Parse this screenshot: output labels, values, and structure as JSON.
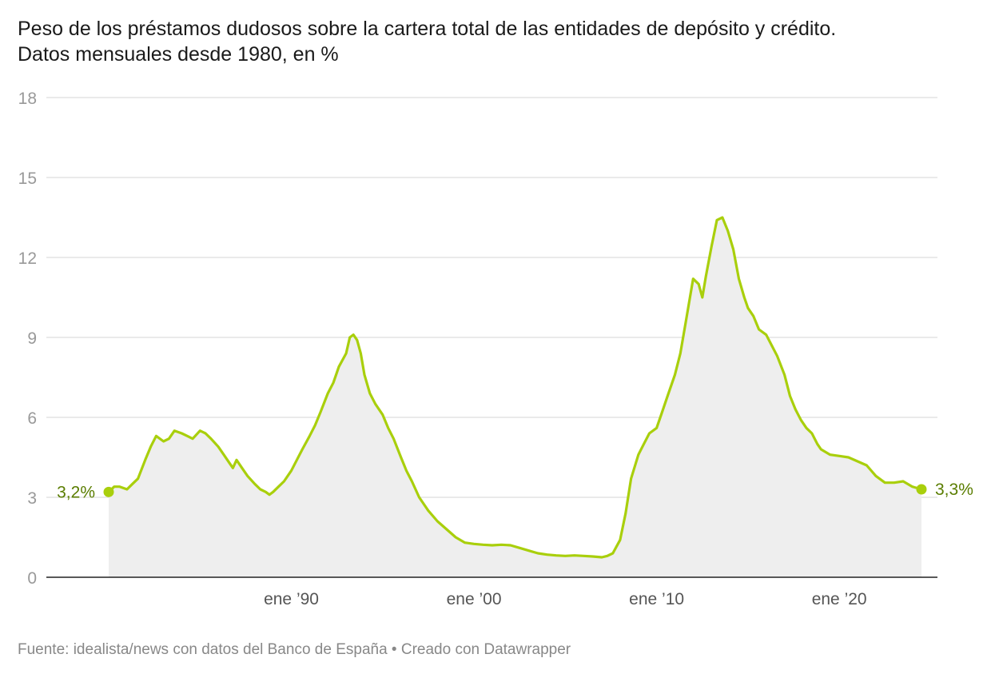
{
  "header": {
    "title": "Peso de los préstamos dudosos sobre la cartera total de las entidades de depósito y crédito.",
    "subtitle": "Datos mensuales desde 1980, en %"
  },
  "footer": {
    "source": "Fuente: idealista/news con datos del Banco de España • Creado con Datawrapper"
  },
  "chart_data": {
    "type": "area",
    "title": "Peso de los préstamos dudosos sobre la cartera total de las entidades de depósito y crédito.",
    "subtitle": "Datos mensuales desde 1980, en %",
    "xlabel": "",
    "ylabel": "",
    "ylim": [
      0,
      18
    ],
    "xlim": [
      1980.0,
      2024.5
    ],
    "yticks": [
      0,
      3,
      6,
      9,
      12,
      15,
      18
    ],
    "xticks": [
      {
        "value": 1990,
        "label": "ene ’90"
      },
      {
        "value": 2000,
        "label": "ene ’00"
      },
      {
        "value": 2010,
        "label": "ene ’10"
      },
      {
        "value": 2020,
        "label": "ene ’20"
      }
    ],
    "grid": true,
    "colors": {
      "line": "#a9cf0c",
      "area": "#eeeeee",
      "label": "#5a7d00",
      "grid": "#dddddd",
      "axis": "#222222",
      "tick": "#999999"
    },
    "series": [
      {
        "x": [
          1980.0,
          1980.3,
          1980.6,
          1981.0,
          1981.3,
          1981.6,
          1982.0,
          1982.3,
          1982.6,
          1983.0,
          1983.3,
          1983.6,
          1984.0,
          1984.3,
          1984.6,
          1985.0,
          1985.3,
          1985.6,
          1986.0,
          1986.3,
          1986.6,
          1986.8,
          1987.0,
          1987.3,
          1987.6,
          1988.0,
          1988.3,
          1988.6,
          1988.8,
          1989.0,
          1989.3,
          1989.6,
          1990.0,
          1990.3,
          1990.6,
          1991.0,
          1991.3,
          1991.6,
          1992.0,
          1992.3,
          1992.6,
          1993.0,
          1993.2,
          1993.4,
          1993.6,
          1993.8,
          1994.0,
          1994.3,
          1994.6,
          1995.0,
          1995.3,
          1995.6,
          1996.0,
          1996.3,
          1996.6,
          1997.0,
          1997.5,
          1998.0,
          1998.5,
          1999.0,
          1999.5,
          2000.0,
          2000.5,
          2001.0,
          2001.5,
          2002.0,
          2002.5,
          2003.0,
          2003.5,
          2004.0,
          2004.5,
          2005.0,
          2005.5,
          2006.0,
          2006.5,
          2007.0,
          2007.3,
          2007.6,
          2008.0,
          2008.3,
          2008.6,
          2009.0,
          2009.3,
          2009.6,
          2010.0,
          2010.3,
          2010.6,
          2011.0,
          2011.3,
          2011.6,
          2012.0,
          2012.3,
          2012.5,
          2012.7,
          2013.0,
          2013.3,
          2013.6,
          2013.9,
          2014.2,
          2014.5,
          2014.8,
          2015.0,
          2015.3,
          2015.6,
          2016.0,
          2016.3,
          2016.6,
          2017.0,
          2017.3,
          2017.6,
          2017.9,
          2018.2,
          2018.5,
          2018.8,
          2019.0,
          2019.5,
          2020.0,
          2020.5,
          2021.0,
          2021.5,
          2022.0,
          2022.5,
          2023.0,
          2023.5,
          2024.0,
          2024.5
        ],
        "y": [
          3.2,
          3.4,
          3.4,
          3.3,
          3.5,
          3.7,
          4.4,
          4.9,
          5.3,
          5.1,
          5.2,
          5.5,
          5.4,
          5.3,
          5.2,
          5.5,
          5.4,
          5.2,
          4.9,
          4.6,
          4.3,
          4.1,
          4.4,
          4.1,
          3.8,
          3.5,
          3.3,
          3.2,
          3.1,
          3.2,
          3.4,
          3.6,
          4.0,
          4.4,
          4.8,
          5.3,
          5.7,
          6.2,
          6.9,
          7.3,
          7.9,
          8.4,
          9.0,
          9.1,
          8.9,
          8.4,
          7.6,
          6.9,
          6.5,
          6.1,
          5.6,
          5.2,
          4.5,
          4.0,
          3.6,
          3.0,
          2.5,
          2.1,
          1.8,
          1.5,
          1.3,
          1.25,
          1.22,
          1.2,
          1.22,
          1.2,
          1.1,
          1.0,
          0.9,
          0.85,
          0.82,
          0.8,
          0.82,
          0.8,
          0.78,
          0.75,
          0.8,
          0.9,
          1.4,
          2.4,
          3.7,
          4.6,
          5.0,
          5.4,
          5.6,
          6.2,
          6.8,
          7.6,
          8.4,
          9.6,
          11.2,
          11.0,
          10.5,
          11.3,
          12.4,
          13.4,
          13.5,
          13.0,
          12.3,
          11.2,
          10.5,
          10.1,
          9.8,
          9.3,
          9.1,
          8.7,
          8.3,
          7.6,
          6.8,
          6.3,
          5.9,
          5.6,
          5.4,
          5.0,
          4.8,
          4.6,
          4.55,
          4.5,
          4.35,
          4.2,
          3.8,
          3.55,
          3.55,
          3.6,
          3.4,
          3.3
        ]
      }
    ],
    "annotations": [
      {
        "x": 1980.0,
        "y": 3.2,
        "label": "3,2%",
        "side": "left"
      },
      {
        "x": 2024.5,
        "y": 3.3,
        "label": "3,3%",
        "side": "right"
      }
    ]
  }
}
